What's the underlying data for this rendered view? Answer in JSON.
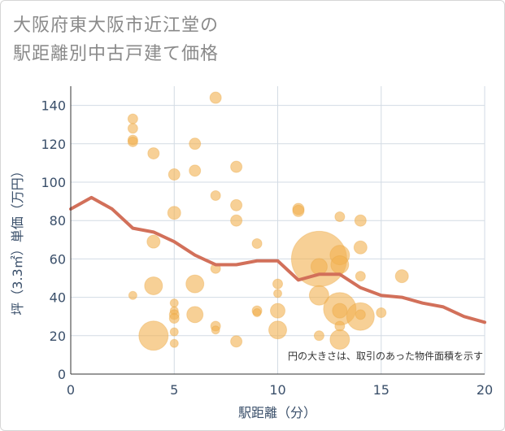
{
  "title_line1": "大阪府東大阪市近江堂の",
  "title_line2": "駅距離別中古戸建て価格",
  "chart_data": {
    "type": "scatter",
    "xlabel": "駅距離（分）",
    "ylabel": "坪（3.3㎡）単価（万円）",
    "xlim": [
      0,
      20
    ],
    "ylim": [
      0,
      150
    ],
    "xticks": [
      0,
      5,
      10,
      15,
      20
    ],
    "yticks": [
      0,
      20,
      40,
      60,
      80,
      100,
      120,
      140
    ],
    "annotation": "円の大きさは、取引のあった物件面積を示す",
    "colors": {
      "bubble": "#f2b150",
      "line": "#d2705a",
      "grid": "#d3dbe4",
      "axis_text": "#3a4f6a"
    },
    "series": [
      {
        "type": "line",
        "x": [
          0,
          1,
          2,
          3,
          4,
          5,
          6,
          7,
          8,
          9,
          10,
          11,
          12,
          13,
          14,
          15,
          16,
          17,
          18,
          19,
          20
        ],
        "values": [
          86,
          92,
          86,
          76,
          74,
          69,
          62,
          57,
          57,
          59,
          59,
          49,
          52,
          52,
          45,
          41,
          40,
          37,
          35,
          30,
          27
        ]
      },
      {
        "type": "bubble",
        "points": [
          {
            "x": 3,
            "y": 133,
            "r": 6
          },
          {
            "x": 3,
            "y": 128,
            "r": 6
          },
          {
            "x": 3,
            "y": 122,
            "r": 6
          },
          {
            "x": 3,
            "y": 121,
            "r": 6
          },
          {
            "x": 3,
            "y": 41,
            "r": 5
          },
          {
            "x": 4,
            "y": 115,
            "r": 7
          },
          {
            "x": 4,
            "y": 69,
            "r": 8
          },
          {
            "x": 4,
            "y": 46,
            "r": 11
          },
          {
            "x": 4,
            "y": 20,
            "r": 18
          },
          {
            "x": 5,
            "y": 104,
            "r": 7
          },
          {
            "x": 5,
            "y": 84,
            "r": 8
          },
          {
            "x": 5,
            "y": 37,
            "r": 5
          },
          {
            "x": 5,
            "y": 33,
            "r": 5
          },
          {
            "x": 5,
            "y": 31,
            "r": 6
          },
          {
            "x": 5,
            "y": 29,
            "r": 6
          },
          {
            "x": 5,
            "y": 22,
            "r": 5
          },
          {
            "x": 5,
            "y": 16,
            "r": 5
          },
          {
            "x": 6,
            "y": 120,
            "r": 7
          },
          {
            "x": 6,
            "y": 106,
            "r": 7
          },
          {
            "x": 6,
            "y": 47,
            "r": 11
          },
          {
            "x": 6,
            "y": 31,
            "r": 10
          },
          {
            "x": 7,
            "y": 144,
            "r": 7
          },
          {
            "x": 7,
            "y": 93,
            "r": 6
          },
          {
            "x": 7,
            "y": 55,
            "r": 6
          },
          {
            "x": 7,
            "y": 25,
            "r": 6
          },
          {
            "x": 7,
            "y": 23,
            "r": 5
          },
          {
            "x": 8,
            "y": 108,
            "r": 7
          },
          {
            "x": 8,
            "y": 88,
            "r": 7
          },
          {
            "x": 8,
            "y": 80,
            "r": 7
          },
          {
            "x": 8,
            "y": 17,
            "r": 7
          },
          {
            "x": 9,
            "y": 68,
            "r": 6
          },
          {
            "x": 9,
            "y": 33,
            "r": 6
          },
          {
            "x": 9,
            "y": 32,
            "r": 5
          },
          {
            "x": 10,
            "y": 47,
            "r": 6
          },
          {
            "x": 10,
            "y": 42,
            "r": 5
          },
          {
            "x": 10,
            "y": 33,
            "r": 9
          },
          {
            "x": 10,
            "y": 23,
            "r": 11
          },
          {
            "x": 11,
            "y": 86,
            "r": 7
          },
          {
            "x": 11,
            "y": 85,
            "r": 7
          },
          {
            "x": 12,
            "y": 60,
            "r": 34
          },
          {
            "x": 12,
            "y": 56,
            "r": 10
          },
          {
            "x": 12,
            "y": 41,
            "r": 12
          },
          {
            "x": 12,
            "y": 20,
            "r": 6
          },
          {
            "x": 13,
            "y": 82,
            "r": 6
          },
          {
            "x": 13,
            "y": 62,
            "r": 12
          },
          {
            "x": 13,
            "y": 57,
            "r": 11
          },
          {
            "x": 13,
            "y": 34,
            "r": 20
          },
          {
            "x": 13,
            "y": 33,
            "r": 9
          },
          {
            "x": 13,
            "y": 25,
            "r": 6
          },
          {
            "x": 13,
            "y": 18,
            "r": 12
          },
          {
            "x": 14,
            "y": 80,
            "r": 7
          },
          {
            "x": 14,
            "y": 66,
            "r": 8
          },
          {
            "x": 14,
            "y": 51,
            "r": 6
          },
          {
            "x": 14,
            "y": 30,
            "r": 17
          },
          {
            "x": 14,
            "y": 31,
            "r": 6
          },
          {
            "x": 15,
            "y": 32,
            "r": 6
          },
          {
            "x": 16,
            "y": 51,
            "r": 8
          }
        ]
      }
    ]
  }
}
